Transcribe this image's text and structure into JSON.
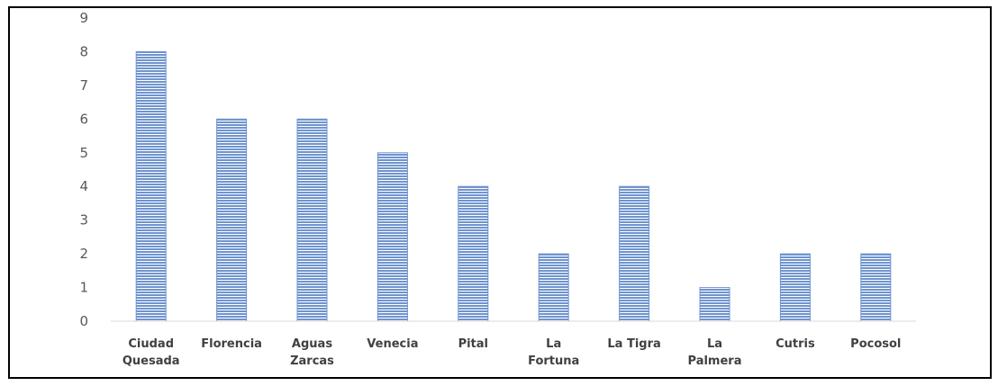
{
  "chart_data": {
    "type": "bar",
    "categories": [
      [
        "Ciudad",
        "Quesada"
      ],
      [
        "Florencia"
      ],
      [
        "Aguas",
        "Zarcas"
      ],
      [
        "Venecia"
      ],
      [
        "Pital"
      ],
      [
        "La",
        "Fortuna"
      ],
      [
        "La Tigra"
      ],
      [
        "La",
        "Palmera"
      ],
      [
        "Cutris"
      ],
      [
        "Pocosol"
      ]
    ],
    "values": [
      8,
      6,
      6,
      5,
      4,
      2,
      4,
      1,
      2,
      2
    ],
    "y_ticks": [
      "0",
      "1",
      "2",
      "3",
      "4",
      "5",
      "6",
      "7",
      "8",
      "9"
    ],
    "ylim": [
      0,
      9
    ],
    "title": "",
    "xlabel": "",
    "ylabel": "",
    "grid": false,
    "legend": "none",
    "colors": {
      "bar_fill": "#6f94cf",
      "bar_stripe": "#ffffff",
      "axis": "#d9d9d9",
      "text": "#595959"
    }
  }
}
